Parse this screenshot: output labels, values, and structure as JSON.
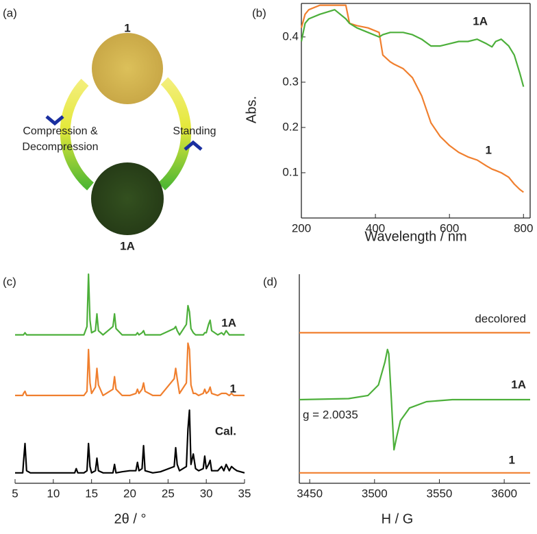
{
  "diagram": {
    "panel_label": "(a)",
    "top_label": "1",
    "bottom_label": "1A",
    "left_text": [
      "Compression &",
      "Decompression"
    ],
    "right_text": "Standing"
  },
  "chart_data": [
    {
      "type": "line",
      "panel_label": "(b)",
      "xlabel": "Wavelength / nm",
      "ylabel": "Abs.",
      "xlim": [
        200,
        818
      ],
      "ylim": [
        0,
        0.474
      ],
      "xticks": [
        200,
        400,
        600,
        800
      ],
      "yticks": [
        0.1,
        0.2,
        0.3,
        0.4
      ],
      "x": [
        200,
        210,
        220,
        250,
        290,
        320,
        330,
        350,
        380,
        410,
        420,
        440,
        450,
        475,
        500,
        525,
        550,
        575,
        600,
        625,
        650,
        675,
        700,
        715,
        725,
        740,
        760,
        775,
        790,
        800
      ],
      "series": [
        {
          "name": "1",
          "color": "#f07f2e",
          "values": [
            0.42,
            0.45,
            0.46,
            0.47,
            0.47,
            0.47,
            0.43,
            0.425,
            0.42,
            0.41,
            0.36,
            0.345,
            0.34,
            0.33,
            0.31,
            0.27,
            0.21,
            0.18,
            0.16,
            0.145,
            0.135,
            0.128,
            0.115,
            0.108,
            0.105,
            0.1,
            0.09,
            0.075,
            0.063,
            0.057
          ]
        },
        {
          "name": "1A",
          "color": "#4caf3a",
          "values": [
            0.39,
            0.43,
            0.44,
            0.45,
            0.46,
            0.44,
            0.43,
            0.42,
            0.41,
            0.4,
            0.405,
            0.41,
            0.41,
            0.41,
            0.405,
            0.395,
            0.38,
            0.38,
            0.385,
            0.39,
            0.39,
            0.395,
            0.385,
            0.378,
            0.39,
            0.395,
            0.38,
            0.36,
            0.32,
            0.29
          ]
        }
      ]
    },
    {
      "type": "line",
      "panel_label": "(c)",
      "xlabel": "2θ / °",
      "xlim": [
        5,
        35
      ],
      "ylim": [
        0,
        100
      ],
      "xticks": [
        5,
        10,
        15,
        20,
        25,
        30,
        35
      ],
      "x": [
        5,
        6,
        6.1,
        6.3,
        6.5,
        7,
        10,
        12.8,
        13,
        13.2,
        14,
        14.4,
        14.6,
        14.8,
        15,
        15.5,
        15.7,
        15.9,
        16.5,
        17.8,
        18,
        18.2,
        19,
        20,
        20.8,
        21,
        21.2,
        21.6,
        21.8,
        22,
        23,
        24,
        25.8,
        26,
        26.2,
        26.5,
        27.4,
        27.6,
        27.8,
        28,
        28.3,
        28.6,
        29,
        29.6,
        29.8,
        30,
        30.3,
        30.5,
        30.7,
        31.5,
        32,
        32.3,
        32.6,
        33,
        33.3,
        33.6,
        34,
        35
      ],
      "series": [
        {
          "name": "1A",
          "color": "#4caf3a",
          "values": [
            71,
            71,
            71,
            72,
            71,
            71,
            71,
            71,
            71,
            71,
            71,
            75,
            100,
            78,
            72,
            73,
            81,
            73,
            71,
            75,
            81,
            74,
            71,
            71,
            71,
            72,
            71,
            72,
            73,
            71,
            71,
            71,
            74,
            75,
            73,
            71,
            76,
            85,
            82,
            74,
            72,
            71,
            71,
            71,
            72,
            72,
            76,
            78,
            73,
            71,
            72,
            71,
            73,
            71,
            71,
            71,
            71,
            71
          ]
        },
        {
          "name": "1",
          "color": "#f07f2e",
          "values": [
            42,
            42,
            43,
            44,
            42,
            42,
            42,
            42,
            42,
            42,
            42,
            44,
            64,
            48,
            43,
            46,
            55,
            47,
            42,
            45,
            51,
            45,
            42,
            42,
            43,
            45,
            43,
            45,
            48,
            44,
            42,
            42,
            50,
            55,
            50,
            43,
            48,
            67,
            64,
            47,
            43,
            43,
            42,
            43,
            45,
            43,
            44,
            46,
            43,
            42,
            43,
            43,
            43,
            42,
            43,
            42,
            42,
            42
          ]
        },
        {
          "name": "Cal.",
          "color": "#000000",
          "values": [
            5,
            5,
            10,
            19,
            6,
            5,
            5,
            5,
            7,
            5,
            5,
            6,
            19,
            8,
            5,
            6,
            12,
            6,
            5,
            5,
            9,
            5,
            5.5,
            6,
            6,
            10,
            6,
            7,
            18,
            6,
            5,
            5.5,
            8,
            17,
            9,
            6,
            8,
            26,
            35,
            9,
            14,
            7,
            6,
            7,
            13,
            7,
            9,
            11,
            6,
            6,
            8,
            6,
            9,
            6,
            8,
            7,
            6,
            5
          ]
        }
      ]
    },
    {
      "type": "line",
      "panel_label": "(d)",
      "xlabel": "H / G",
      "annotation": "g = 2.0035",
      "xlim": [
        3442,
        3620
      ],
      "ylim": [
        0,
        100
      ],
      "xticks": [
        3450,
        3500,
        3550,
        3600
      ],
      "series": [
        {
          "name": "decolored",
          "color": "#f07f2e",
          "x": [
            3442,
            3620
          ],
          "values": [
            72,
            72
          ]
        },
        {
          "name": "1A",
          "color": "#4caf3a",
          "x": [
            3442,
            3480,
            3495,
            3503,
            3508,
            3510,
            3511,
            3513,
            3515,
            3517,
            3520,
            3527,
            3540,
            3560,
            3620
          ],
          "values": [
            40,
            40.5,
            42,
            47,
            58,
            64,
            62,
            40,
            16,
            22,
            30,
            36,
            39,
            40,
            40
          ]
        },
        {
          "name": "1",
          "color": "#f07f2e",
          "x": [
            3442,
            3620
          ],
          "values": [
            5,
            5
          ]
        }
      ]
    }
  ]
}
